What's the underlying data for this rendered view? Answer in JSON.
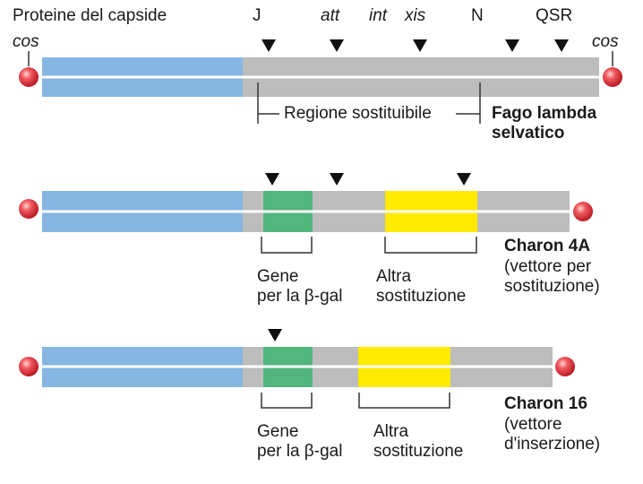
{
  "colors": {
    "capsid": "#86b6e2",
    "gray": "#bdbdbd",
    "gene_green": "#52b67e",
    "insert_yellow": "#ffea00",
    "cos_red": "#e5222d",
    "arrow": "#111111"
  },
  "wild_type": {
    "top_labels": {
      "capsid": "Proteine del capside",
      "j": "J",
      "att": "att",
      "int": "int",
      "xis": "xis",
      "n": "N",
      "qsr": "QSR"
    },
    "cos_left": "cos",
    "cos_right": "cos",
    "region_label": "Regione sostituibile",
    "name": "Fago lambda\nselvatico"
  },
  "charon4a": {
    "gene_label": "Gene\nper la β-gal",
    "insert_label": "Altra\nsostituzione",
    "name": "Charon 4A",
    "desc": "(vettore per\nsostituzione)"
  },
  "charon16": {
    "gene_label": "Gene\nper la β-gal",
    "insert_label": "Altra\nsostituzione",
    "name": "Charon 16",
    "desc": "(vettore\nd'inserzione)"
  }
}
